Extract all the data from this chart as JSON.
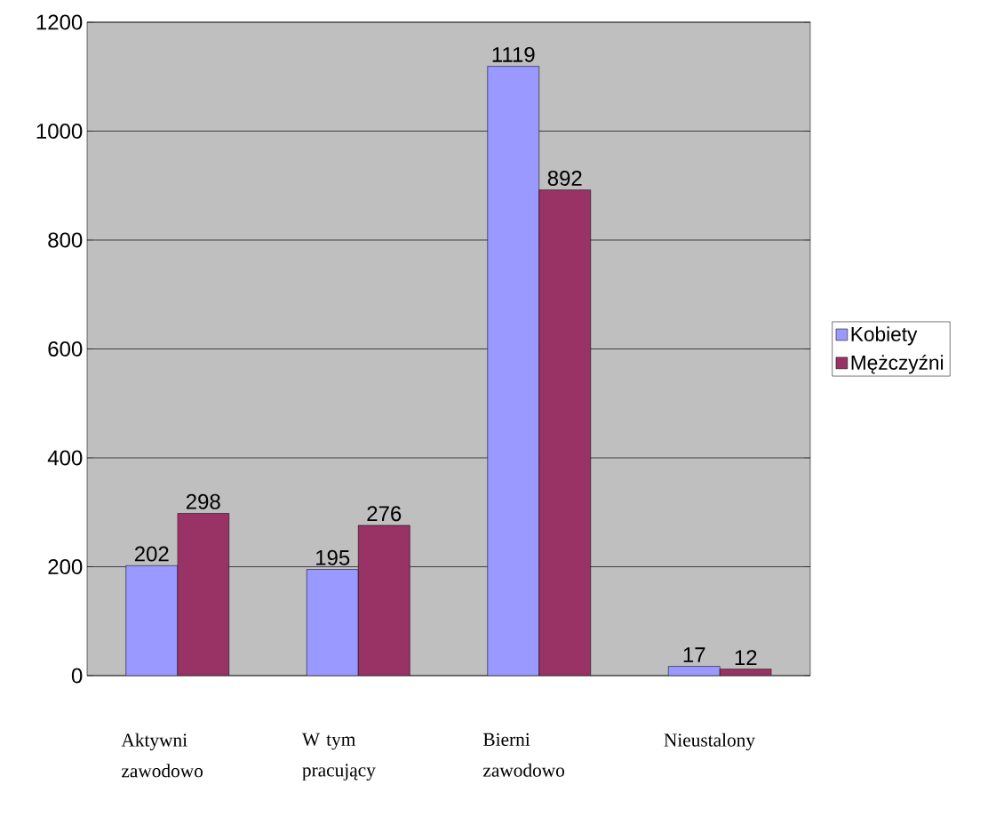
{
  "chart_data": {
    "type": "bar",
    "categories": [
      "Aktywni zawodowo",
      "W tym pracujący",
      "Bierni zawodowo",
      "Nieustalony"
    ],
    "series": [
      {
        "name": "Kobiety",
        "color": "#9999ff",
        "values": [
          202,
          195,
          1119,
          17
        ]
      },
      {
        "name": "Mężczyźni",
        "color": "#993366",
        "values": [
          298,
          276,
          892,
          12
        ]
      }
    ],
    "ylim": [
      0,
      1200
    ],
    "yticks": [
      0,
      200,
      400,
      600,
      800,
      1000,
      1200
    ],
    "grid": "y",
    "legend": "right",
    "data_labels": true
  }
}
